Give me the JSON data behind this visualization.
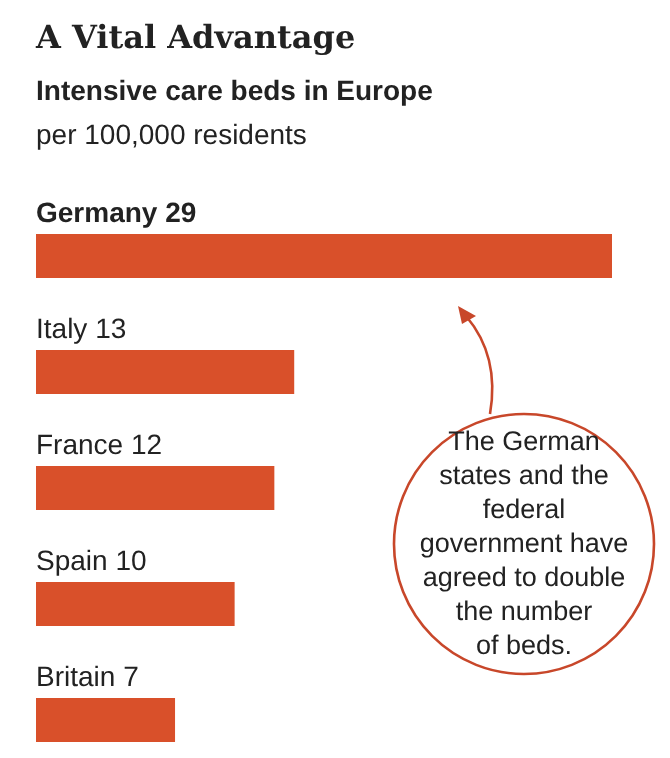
{
  "chart_data": {
    "type": "bar",
    "orientation": "horizontal",
    "title": "A Vital Advantage",
    "subtitle": "Intensive care beds in Europe",
    "xlabel": "per 100,000 residents",
    "categories": [
      "Germany",
      "Italy",
      "France",
      "Spain",
      "Britain"
    ],
    "values": [
      29,
      13,
      12,
      10,
      7
    ],
    "colors": [
      "#d9502a",
      "#d9502a",
      "#d9502a",
      "#d9502a",
      "#d9502a"
    ],
    "data_labels": true,
    "annotations": [
      "The German states and the federal government have agreed to double the number of beds."
    ]
  }
}
